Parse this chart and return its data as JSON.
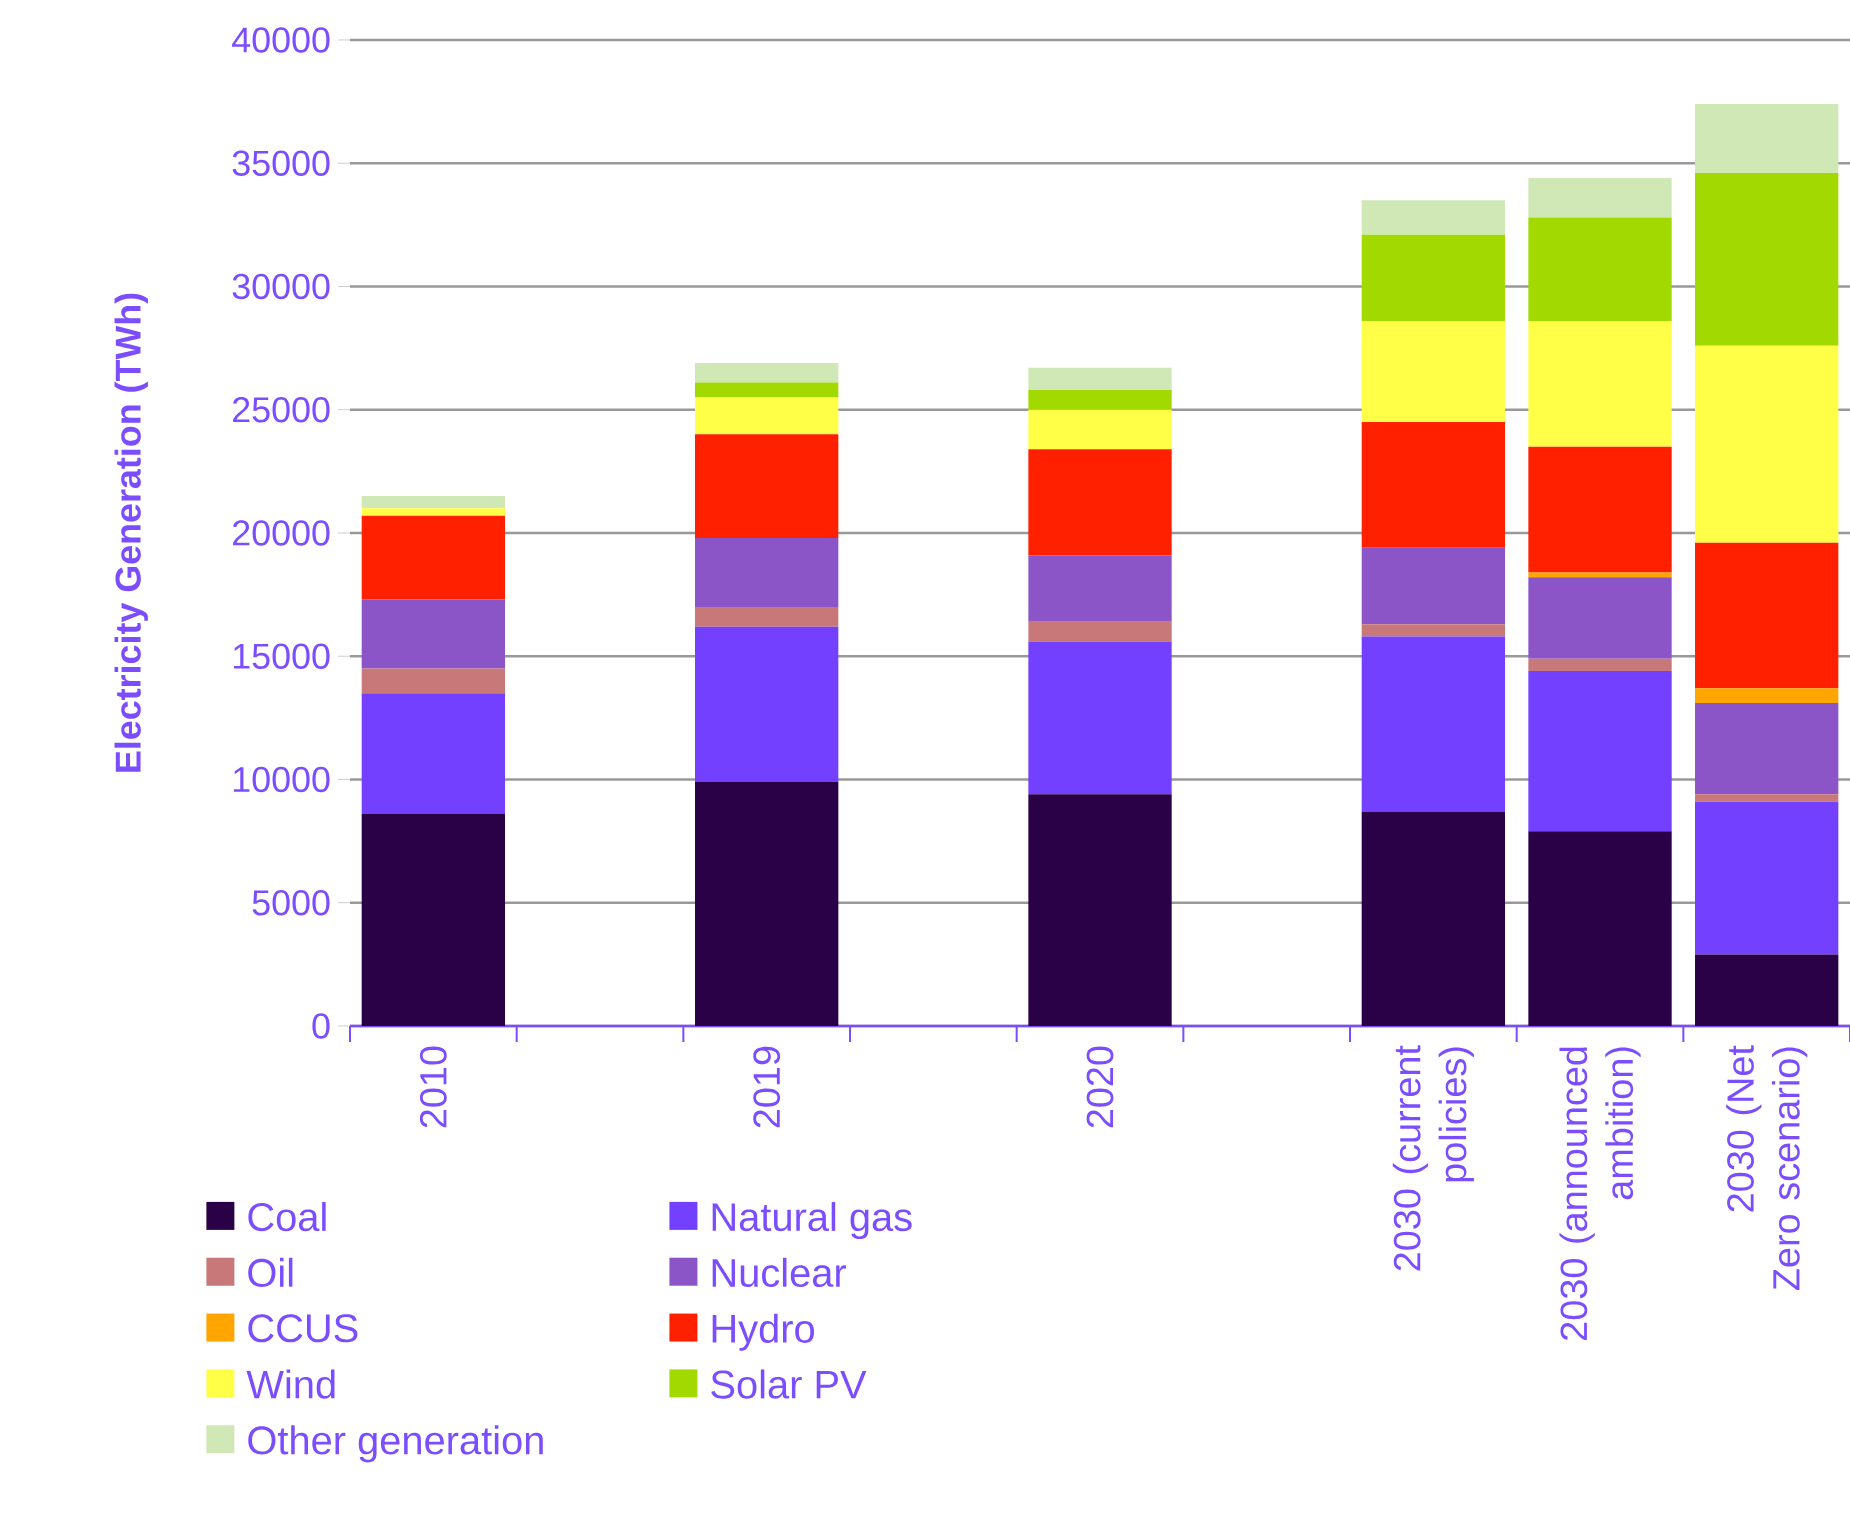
{
  "chart_data": {
    "type": "bar",
    "stacked": true,
    "ylabel": "Electricity Generation (TWh)",
    "categories": [
      "2010",
      null,
      "2019",
      null,
      "2020",
      null,
      "2030 (current policies)",
      "2030 (announced ambition)",
      "2030 (Net Zero scenario)"
    ],
    "series": [
      {
        "name": "Coal",
        "color": "#2a0047",
        "values": [
          8600,
          null,
          9900,
          null,
          9400,
          null,
          8700,
          7900,
          2900
        ]
      },
      {
        "name": "Natural gas",
        "color": "#7340ff",
        "values": [
          4900,
          null,
          6300,
          null,
          6200,
          null,
          7100,
          6500,
          6200
        ]
      },
      {
        "name": "Oil",
        "color": "#c87878",
        "values": [
          1000,
          null,
          800,
          null,
          800,
          null,
          500,
          500,
          300
        ]
      },
      {
        "name": "Nuclear",
        "color": "#8b55c8",
        "values": [
          2800,
          null,
          2800,
          null,
          2700,
          null,
          3100,
          3300,
          3700
        ]
      },
      {
        "name": "CCUS",
        "color": "#ffa500",
        "values": [
          0,
          null,
          0,
          null,
          0,
          null,
          0,
          200,
          600
        ]
      },
      {
        "name": "Hydro",
        "color": "#ff2000",
        "values": [
          3400,
          null,
          4200,
          null,
          4300,
          null,
          5100,
          5100,
          5900
        ]
      },
      {
        "name": "Wind",
        "color": "#ffff47",
        "values": [
          300,
          null,
          1500,
          null,
          1600,
          null,
          4100,
          5100,
          8000
        ]
      },
      {
        "name": "Solar PV",
        "color": "#a2d900",
        "values": [
          0,
          null,
          600,
          null,
          800,
          null,
          3500,
          4200,
          7000
        ]
      },
      {
        "name": "Other generation",
        "color": "#cfe8b6",
        "values": [
          500,
          null,
          800,
          null,
          900,
          null,
          1400,
          1600,
          2800
        ]
      }
    ],
    "ylim": [
      0,
      40000
    ],
    "yticks": [
      0,
      5000,
      10000,
      15000,
      20000,
      25000,
      30000,
      35000,
      40000
    ],
    "grid": "y",
    "legend": "bottom"
  }
}
